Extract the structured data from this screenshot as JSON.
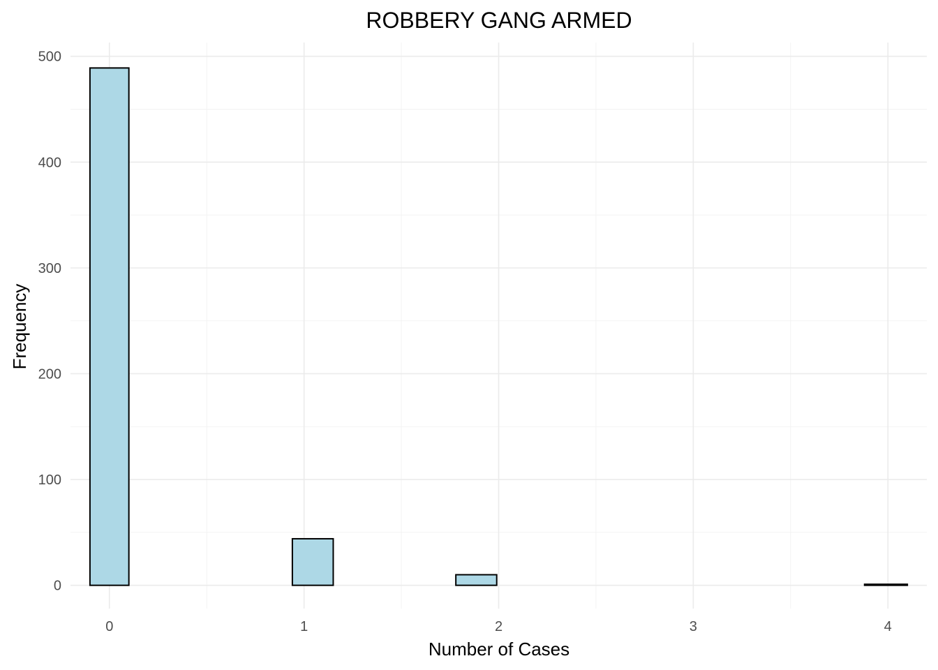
{
  "chart_data": {
    "type": "bar",
    "title": "ROBBERY GANG ARMED",
    "xlabel": "Number of Cases",
    "ylabel": "Frequency",
    "x_ticks": [
      "0",
      "1",
      "2",
      "3",
      "4"
    ],
    "y_ticks": [
      "0",
      "100",
      "200",
      "300",
      "400",
      "500"
    ],
    "bins": [
      {
        "x_start": -0.1,
        "x_end": 0.1,
        "value": 489
      },
      {
        "x_start": 0.1,
        "x_end": 0.31,
        "value": 0
      },
      {
        "x_start": 0.31,
        "x_end": 0.52,
        "value": 0
      },
      {
        "x_start": 0.52,
        "x_end": 0.73,
        "value": 0
      },
      {
        "x_start": 0.73,
        "x_end": 0.94,
        "value": 0
      },
      {
        "x_start": 0.94,
        "x_end": 1.15,
        "value": 44
      },
      {
        "x_start": 1.15,
        "x_end": 1.36,
        "value": 0
      },
      {
        "x_start": 1.36,
        "x_end": 1.57,
        "value": 0
      },
      {
        "x_start": 1.57,
        "x_end": 1.78,
        "value": 0
      },
      {
        "x_start": 1.78,
        "x_end": 1.99,
        "value": 10
      },
      {
        "x_start": 1.99,
        "x_end": 2.2,
        "value": 0
      },
      {
        "x_start": 2.2,
        "x_end": 2.41,
        "value": 0
      },
      {
        "x_start": 2.41,
        "x_end": 2.62,
        "value": 0
      },
      {
        "x_start": 2.62,
        "x_end": 2.83,
        "value": 0
      },
      {
        "x_start": 2.83,
        "x_end": 3.04,
        "value": 0
      },
      {
        "x_start": 3.04,
        "x_end": 3.25,
        "value": 0
      },
      {
        "x_start": 3.25,
        "x_end": 3.46,
        "value": 0
      },
      {
        "x_start": 3.46,
        "x_end": 3.67,
        "value": 0
      },
      {
        "x_start": 3.67,
        "x_end": 3.88,
        "value": 0
      },
      {
        "x_start": 3.88,
        "x_end": 4.1,
        "value": 1
      }
    ],
    "xlim": [
      -0.2,
      4.2
    ],
    "ylim": [
      -22,
      513
    ],
    "bar_color": "#add8e6",
    "bar_outline": "#000000",
    "grid": true,
    "legend": "none"
  }
}
